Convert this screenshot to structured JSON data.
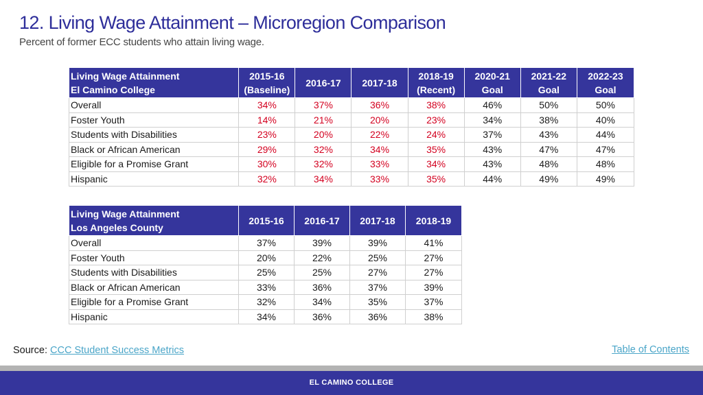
{
  "header": {
    "title": "12. Living Wage Attainment – Microregion Comparison",
    "subtitle": "Percent of former ECC students who attain living wage."
  },
  "table_ecc": {
    "rowhead": [
      "Living Wage Attainment",
      "El Camino College"
    ],
    "columns": [
      [
        "2015-16",
        "(Baseline)"
      ],
      [
        "2016-17"
      ],
      [
        "2017-18"
      ],
      [
        "2018-19",
        "(Recent)"
      ],
      [
        "2020-21",
        "Goal"
      ],
      [
        "2021-22",
        "Goal"
      ],
      [
        "2022-23",
        "Goal"
      ]
    ],
    "rows": [
      {
        "label": "Overall",
        "values": [
          "34%",
          "37%",
          "36%",
          "38%",
          "46%",
          "50%",
          "50%"
        ]
      },
      {
        "label": "Foster Youth",
        "values": [
          "14%",
          "21%",
          "20%",
          "23%",
          "34%",
          "38%",
          "40%"
        ]
      },
      {
        "label": "Students with Disabilities",
        "values": [
          "23%",
          "20%",
          "22%",
          "24%",
          "37%",
          "43%",
          "44%"
        ]
      },
      {
        "label": "Black or African American",
        "values": [
          "29%",
          "32%",
          "34%",
          "35%",
          "43%",
          "47%",
          "47%"
        ]
      },
      {
        "label": "Eligible for a Promise Grant",
        "values": [
          "30%",
          "32%",
          "33%",
          "34%",
          "43%",
          "48%",
          "48%"
        ]
      },
      {
        "label": "Hispanic",
        "values": [
          "32%",
          "34%",
          "33%",
          "35%",
          "44%",
          "49%",
          "49%"
        ]
      }
    ]
  },
  "table_la": {
    "rowhead": [
      "Living Wage Attainment",
      "Los Angeles County"
    ],
    "columns": [
      "2015-16",
      "2016-17",
      "2017-18",
      "2018-19"
    ],
    "rows": [
      {
        "label": "Overall",
        "values": [
          "37%",
          "39%",
          "39%",
          "41%"
        ]
      },
      {
        "label": "Foster Youth",
        "values": [
          "20%",
          "22%",
          "25%",
          "27%"
        ]
      },
      {
        "label": "Students with Disabilities",
        "values": [
          "25%",
          "25%",
          "27%",
          "27%"
        ]
      },
      {
        "label": "Black or African American",
        "values": [
          "33%",
          "36%",
          "37%",
          "39%"
        ]
      },
      {
        "label": "Eligible for a Promise Grant",
        "values": [
          "32%",
          "34%",
          "35%",
          "37%"
        ]
      },
      {
        "label": "Hispanic",
        "values": [
          "34%",
          "36%",
          "36%",
          "38%"
        ]
      }
    ]
  },
  "source": {
    "label": "Source:",
    "link_text": "CCC Student Success Metrics"
  },
  "toc_link": "Table of Contents",
  "footer": {
    "text": "EL CAMINO COLLEGE"
  },
  "colors": {
    "header_fill": "#35359c",
    "title_text": "#2e2e9a",
    "highlight_values": "#d3001f",
    "link": "#4aa5c8"
  }
}
